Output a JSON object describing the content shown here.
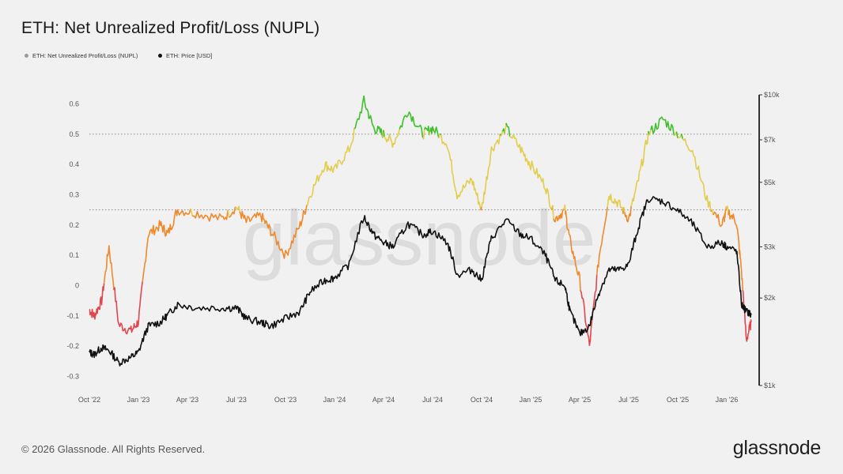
{
  "title": "ETH: Net Unrealized Profit/Loss (NUPL)",
  "legend": [
    {
      "label": "ETH: Net Unrealized Profit/Loss (NUPL)",
      "color": "#9a9a9a"
    },
    {
      "label": "ETH: Price [USD]",
      "color": "#111111"
    }
  ],
  "watermark": "glassnode",
  "footer": "© 2026 Glassnode. All Rights Reserved.",
  "brand": "glassnode",
  "chart_data": {
    "type": "line",
    "title": "ETH: Net Unrealized Profit/Loss (NUPL)",
    "x_ticks": [
      "Oct '22",
      "Jan '23",
      "Apr '23",
      "Jul '23",
      "Oct '23",
      "Jan '24",
      "Apr '24",
      "Jul '24",
      "Oct '24",
      "Jan '25",
      "Apr '25",
      "Jul '25",
      "Oct '25",
      "Jan '26"
    ],
    "left_axis": {
      "ticks": [
        "0.6",
        "0.5",
        "0.4",
        "0.3",
        "0.2",
        "0.1",
        "0",
        "-0.1",
        "-0.2",
        "-0.3"
      ],
      "ylim": [
        -0.33,
        0.63
      ]
    },
    "right_axis": {
      "scale": "log",
      "ticks": [
        "$10k",
        "$7k",
        "$5k",
        "$3k",
        "$2k",
        "$1k"
      ],
      "ylim": [
        1000,
        10000
      ]
    },
    "reference_lines": [
      0.5,
      0.25
    ],
    "zone_colors": {
      "capitulation": "#e0474c",
      "hope_fear": "#ef8a2c",
      "optimism_anxiety": "#e3cd4d",
      "belief_denial": "#3fbf2d"
    },
    "zone_thresholds": [
      0,
      0.25,
      0.5
    ],
    "series": [
      {
        "name": "ETH: Net Unrealized Profit/Loss (NUPL)",
        "axis": "left",
        "x": [
          0,
          0.1,
          0.25,
          0.4,
          0.6,
          0.85,
          1.0,
          1.2,
          1.45,
          1.6,
          1.8,
          2.2,
          2.7,
          3.0,
          3.2,
          3.5,
          3.7,
          4.0,
          4.3,
          4.5,
          4.8,
          5.0,
          5.3,
          5.6,
          5.8,
          6.0,
          6.2,
          6.5,
          6.8,
          7.0,
          7.3,
          7.5,
          7.8,
          8.0,
          8.2,
          8.5,
          8.8,
          9.0,
          9.3,
          9.5,
          9.7,
          9.8,
          10.0,
          10.2,
          10.4,
          10.6,
          10.8,
          11.0,
          11.2,
          11.4,
          11.7,
          12.0,
          12.3,
          12.6,
          12.9,
          13.0,
          13.2,
          13.3,
          13.4,
          13.5
        ],
        "values": [
          -0.08,
          -0.1,
          -0.05,
          0.13,
          -0.13,
          -0.15,
          -0.12,
          0.17,
          0.2,
          0.17,
          0.25,
          0.24,
          0.22,
          0.26,
          0.21,
          0.23,
          0.18,
          0.1,
          0.2,
          0.3,
          0.4,
          0.38,
          0.45,
          0.61,
          0.52,
          0.5,
          0.47,
          0.58,
          0.5,
          0.52,
          0.47,
          0.3,
          0.35,
          0.25,
          0.45,
          0.52,
          0.45,
          0.4,
          0.33,
          0.22,
          0.25,
          0.15,
          0.02,
          -0.2,
          0.1,
          0.3,
          0.27,
          0.22,
          0.35,
          0.5,
          0.55,
          0.5,
          0.45,
          0.28,
          0.2,
          0.25,
          0.21,
          0.05,
          -0.18,
          -0.12
        ]
      },
      {
        "name": "ETH: Price [USD]",
        "axis": "right",
        "x": [
          0,
          0.1,
          0.25,
          0.4,
          0.6,
          0.85,
          1.0,
          1.2,
          1.45,
          1.6,
          1.8,
          2.2,
          2.7,
          3.0,
          3.2,
          3.5,
          3.7,
          4.0,
          4.3,
          4.5,
          4.8,
          5.0,
          5.3,
          5.6,
          5.8,
          6.0,
          6.2,
          6.5,
          6.8,
          7.0,
          7.3,
          7.5,
          7.8,
          8.0,
          8.2,
          8.5,
          8.8,
          9.0,
          9.3,
          9.5,
          9.7,
          9.8,
          10.0,
          10.2,
          10.4,
          10.6,
          10.8,
          11.0,
          11.2,
          11.4,
          11.7,
          12.0,
          12.3,
          12.6,
          12.9,
          13.0,
          13.2,
          13.3,
          13.4,
          13.5
        ],
        "values": [
          1300,
          1280,
          1350,
          1320,
          1200,
          1250,
          1300,
          1600,
          1650,
          1750,
          1900,
          1850,
          1850,
          1850,
          1700,
          1650,
          1600,
          1700,
          1800,
          2100,
          2300,
          2350,
          2600,
          3800,
          3300,
          3100,
          3000,
          3600,
          3300,
          3400,
          3100,
          2400,
          2500,
          2300,
          3200,
          3700,
          3300,
          3200,
          2800,
          2300,
          2200,
          1800,
          1500,
          1600,
          2100,
          2500,
          2500,
          2600,
          3500,
          4400,
          4300,
          4000,
          3600,
          3000,
          3100,
          3000,
          2900,
          1900,
          1800,
          1750
        ]
      }
    ]
  }
}
